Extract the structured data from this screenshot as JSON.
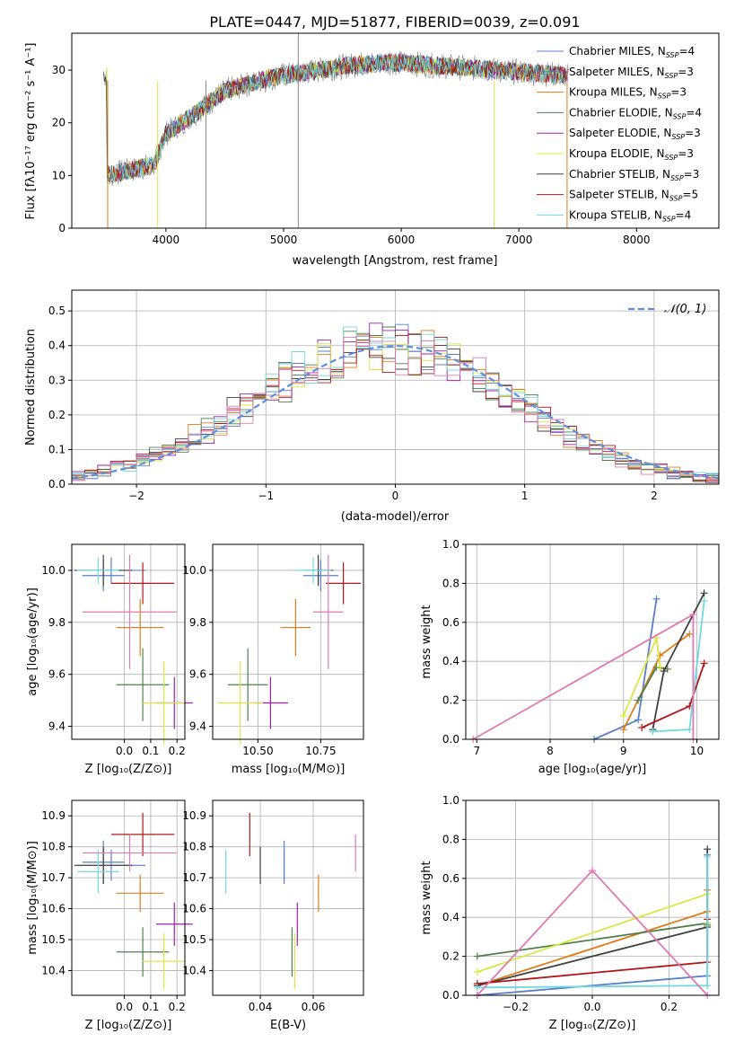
{
  "title": "PLATE=0447, MJD=51877, FIBERID=0039, z=0.091",
  "colors": {
    "Chabrier MILES": "#5b7fc7",
    "Salpeter MILES": "#5b7fc7",
    "Kroupa MILES": "#e07b1a",
    "Chabrier ELODIE": "#4f7f4f",
    "Salpeter ELODIE": "#a020b0",
    "Kroupa ELODIE": "#d8e840",
    "Chabrier STELIB": "#404040",
    "Salpeter STELIB": "#b01818",
    "Kroupa STELIB": "#70d8e0",
    "normal": "#5b8fdf",
    "pink": "#e07ab0"
  },
  "chart_data": [
    {
      "panel": "spectrum",
      "type": "line",
      "xlabel": "wavelength [Angstrom, rest frame]",
      "ylabel": "Flux [fλ10⁻¹⁷ erg cm⁻² s⁻¹ A⁻¹]",
      "xlim": [
        3200,
        8700
      ],
      "ylim": [
        0,
        37
      ],
      "xticks": [
        4000,
        5000,
        6000,
        7000,
        8000
      ],
      "yticks": [
        0,
        10,
        20,
        30
      ],
      "grid": false,
      "legend_position": "top-right",
      "legend": [
        {
          "name": "Chabrier MILES",
          "nssp": "4"
        },
        {
          "name": "Salpeter MILES",
          "nssp": "3"
        },
        {
          "name": "Kroupa MILES",
          "nssp": "3"
        },
        {
          "name": "Chabrier ELODIE",
          "nssp": "4"
        },
        {
          "name": "Salpeter ELODIE",
          "nssp": "3"
        },
        {
          "name": "Kroupa ELODIE",
          "nssp": "3"
        },
        {
          "name": "Chabrier STELIB",
          "nssp": "3"
        },
        {
          "name": "Salpeter STELIB",
          "nssp": "5"
        },
        {
          "name": "Kroupa STELIB",
          "nssp": "4"
        }
      ],
      "continuum": {
        "x": [
          3500,
          3700,
          3900,
          4000,
          4200,
          4500,
          4800,
          5000,
          5300,
          5600,
          5900,
          6200,
          6500,
          6800,
          7100,
          7400
        ],
        "y": [
          10,
          11,
          12,
          18,
          21,
          26,
          28,
          29,
          30,
          31,
          31.5,
          31,
          30.5,
          30,
          29.5,
          29
        ]
      }
    },
    {
      "panel": "residuals",
      "type": "histogram",
      "xlabel": "(data-model)/error",
      "ylabel": "Normed distribution",
      "xlim": [
        -2.5,
        2.5
      ],
      "ylim": [
        0,
        0.56
      ],
      "xticks": [
        -2,
        -1,
        0,
        1,
        2
      ],
      "yticks": [
        0.0,
        0.1,
        0.2,
        0.3,
        0.4,
        0.5
      ],
      "grid": true,
      "legend_position": "top-right",
      "legend_label": "𝒩(0, 1)",
      "bin_width": 0.1
    },
    {
      "panel": "age-vs-Z",
      "type": "errorbar",
      "xlabel": "Z [log₁₀(Z/Z⊙)]",
      "ylabel": "age  [log₁₀(age/yr)]",
      "xlim": [
        -0.2,
        0.23
      ],
      "ylim": [
        9.35,
        10.1
      ],
      "xticks": [
        0.0,
        0.1,
        0.2
      ],
      "yticks": [
        9.4,
        9.6,
        9.8,
        10.0
      ],
      "grid": true
    },
    {
      "panel": "age-vs-mass",
      "type": "errorbar",
      "xlabel": "mass [log₁₀(M/M⊙)]",
      "ylabel": "",
      "xlim": [
        10.32,
        10.92
      ],
      "ylim": [
        9.35,
        10.1
      ],
      "xticks": [
        10.5,
        10.75
      ],
      "yticks": [
        9.4,
        9.6,
        9.8,
        10.0
      ],
      "grid": true
    },
    {
      "panel": "massweight-vs-age",
      "type": "line",
      "xlabel": "age  [log₁₀(age/yr)]",
      "ylabel": "mass weight",
      "xlim": [
        6.85,
        10.3
      ],
      "ylim": [
        0,
        1
      ],
      "xticks": [
        7,
        8,
        9,
        10
      ],
      "yticks": [
        0.0,
        0.2,
        0.4,
        0.6,
        0.8,
        1.0
      ],
      "grid": true
    },
    {
      "panel": "mass-vs-Z",
      "type": "errorbar",
      "xlabel": "Z [log₁₀(Z/Z⊙)]",
      "ylabel": "mass [log₁₀(M/M⊙)]",
      "xlim": [
        -0.2,
        0.23
      ],
      "ylim": [
        10.32,
        10.95
      ],
      "xticks": [
        0.0,
        0.1,
        0.2
      ],
      "yticks": [
        10.4,
        10.5,
        10.6,
        10.7,
        10.8,
        10.9
      ],
      "grid": true
    },
    {
      "panel": "mass-vs-EBV",
      "type": "errorbar",
      "xlabel": "E(B-V)",
      "ylabel": "",
      "xlim": [
        0.022,
        0.079
      ],
      "ylim": [
        10.32,
        10.95
      ],
      "xticks": [
        0.04,
        0.06
      ],
      "yticks": [
        10.4,
        10.5,
        10.6,
        10.7,
        10.8,
        10.9
      ],
      "grid": true
    },
    {
      "panel": "massweight-vs-Z",
      "type": "line",
      "xlabel": "Z [log₁₀(Z/Z⊙)]",
      "ylabel": "mass weight",
      "xlim": [
        -0.33,
        0.33
      ],
      "ylim": [
        0,
        1
      ],
      "xticks": [
        -0.2,
        0.0,
        0.2
      ],
      "yticks": [
        0.0,
        0.2,
        0.4,
        0.6,
        0.8,
        1.0
      ],
      "grid": true
    }
  ],
  "fits": [
    {
      "key": "Chabrier MILES",
      "age": 10.0,
      "age_err": 0.05,
      "Z": -0.05,
      "Z_err": 0.13,
      "mass": 10.74,
      "mass_err": 0.05,
      "ebv": 0.049,
      "ebv_err": 0.0
    },
    {
      "key": "Salpeter MILES",
      "age": 9.98,
      "age_err": 0.06,
      "Z": -0.08,
      "Z_err": 0.08,
      "mass": 10.75,
      "mass_err": 0.07,
      "ebv": 0.049,
      "ebv_err": 0.0
    },
    {
      "key": "Kroupa MILES",
      "age": 9.78,
      "age_err": 0.11,
      "Z": 0.06,
      "Z_err": 0.09,
      "mass": 10.65,
      "mass_err": 0.06,
      "ebv": 0.062,
      "ebv_err": 0.0
    },
    {
      "key": "Chabrier ELODIE",
      "age": 9.56,
      "age_err": 0.14,
      "Z": 0.07,
      "Z_err": 0.1,
      "mass": 10.46,
      "mass_err": 0.08,
      "ebv": 0.052,
      "ebv_err": 0.0
    },
    {
      "key": "Salpeter ELODIE",
      "age": 9.49,
      "age_err": 0.1,
      "Z": 0.19,
      "Z_err": 0.07,
      "mass": 10.55,
      "mass_err": 0.07,
      "ebv": 0.054,
      "ebv_err": 0.0
    },
    {
      "key": "Kroupa ELODIE",
      "age": 9.49,
      "age_err": 0.16,
      "Z": 0.15,
      "Z_err": 0.08,
      "mass": 10.43,
      "mass_err": 0.09,
      "ebv": 0.053,
      "ebv_err": 0.0
    },
    {
      "key": "Chabrier STELIB",
      "age": 10.0,
      "age_err": 0.06,
      "Z": -0.08,
      "Z_err": 0.11,
      "mass": 10.74,
      "mass_err": 0.06,
      "ebv": 0.04,
      "ebv_err": 0.0
    },
    {
      "key": "Salpeter STELIB",
      "age": 9.95,
      "age_err": 0.08,
      "Z": 0.07,
      "Z_err": 0.12,
      "mass": 10.84,
      "mass_err": 0.07,
      "ebv": 0.036,
      "ebv_err": 0.0
    },
    {
      "key": "Kroupa STELIB",
      "age": 10.0,
      "age_err": 0.05,
      "Z": -0.1,
      "Z_err": 0.08,
      "mass": 10.72,
      "mass_err": 0.07,
      "ebv": 0.027,
      "ebv_err": 0.0
    },
    {
      "key": "pink",
      "age": 9.84,
      "age_err": 0.22,
      "Z": 0.02,
      "Z_err": 0.18,
      "mass": 10.78,
      "mass_err": 0.06,
      "ebv": 0.076,
      "ebv_err": 0.0
    }
  ],
  "ssp_weights": [
    {
      "key": "Chabrier MILES",
      "age": [
        8.6,
        9.2,
        9.45
      ],
      "Z": [
        -0.3,
        0.3,
        0.3
      ],
      "w": [
        0.0,
        0.1,
        0.72
      ]
    },
    {
      "key": "Kroupa MILES",
      "age": [
        9.0,
        9.5,
        9.9
      ],
      "Z": [
        -0.3,
        0.3,
        0.3
      ],
      "w": [
        0.05,
        0.43,
        0.54
      ]
    },
    {
      "key": "Chabrier ELODIE",
      "age": [
        9.2,
        9.45,
        9.6
      ],
      "Z": [
        -0.3,
        0.3,
        0.3
      ],
      "w": [
        0.2,
        0.37,
        0.36
      ]
    },
    {
      "key": "Kroupa ELODIE",
      "age": [
        9.0,
        9.45,
        9.5
      ],
      "Z": [
        -0.3,
        0.3,
        0.3
      ],
      "w": [
        0.12,
        0.52,
        0.37
      ]
    },
    {
      "key": "Chabrier STELIB",
      "age": [
        9.4,
        9.55,
        10.1
      ],
      "Z": [
        -0.3,
        0.3,
        0.3
      ],
      "w": [
        0.05,
        0.35,
        0.75
      ]
    },
    {
      "key": "Salpeter STELIB",
      "age": [
        9.25,
        9.9,
        10.1
      ],
      "Z": [
        -0.3,
        0.3,
        0.3
      ],
      "w": [
        0.06,
        0.17,
        0.39
      ]
    },
    {
      "key": "Kroupa STELIB",
      "age": [
        9.4,
        9.9,
        10.1
      ],
      "Z": [
        -0.3,
        0.3,
        0.3
      ],
      "w": [
        0.04,
        0.05,
        0.71
      ]
    },
    {
      "key": "pink",
      "age": [
        6.95,
        9.95,
        9.95
      ],
      "Z": [
        -0.3,
        0.0,
        0.3
      ],
      "w": [
        0.0,
        0.64,
        0.0
      ]
    }
  ]
}
